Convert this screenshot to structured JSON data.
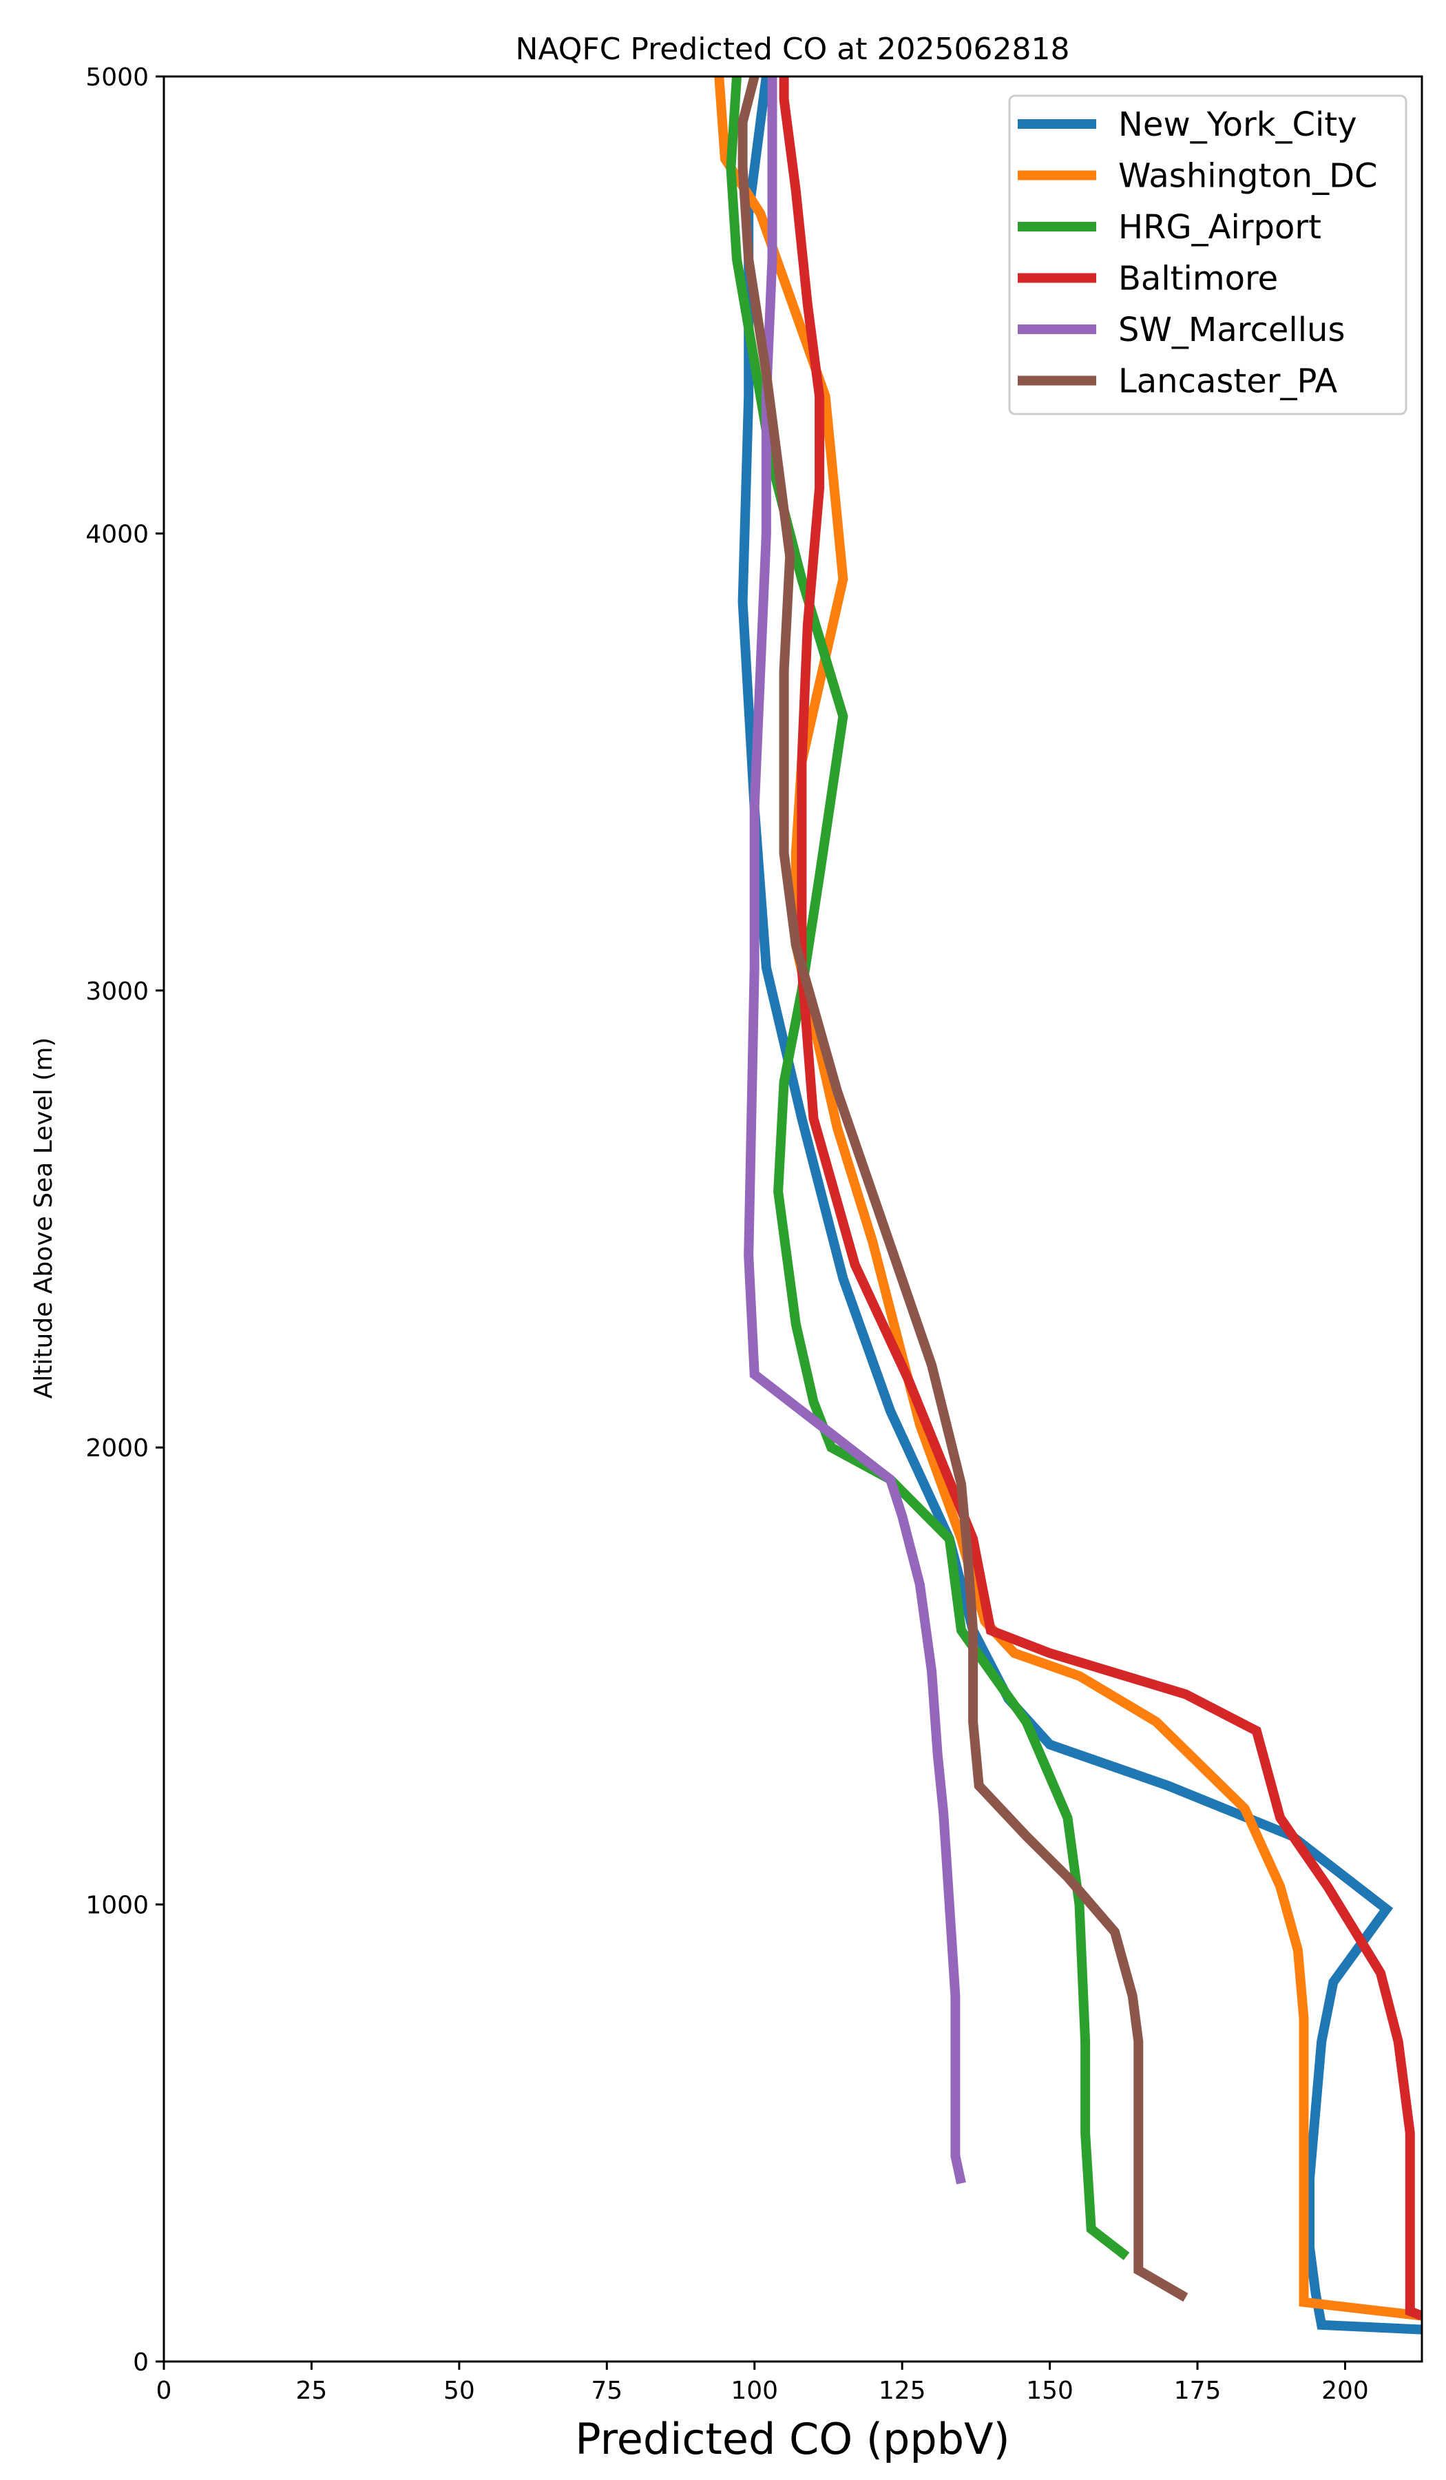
{
  "chart_data": {
    "type": "line",
    "title": "NAQFC Predicted CO at 2025062818",
    "xlabel": "Predicted CO (ppbV)",
    "ylabel": "Altitude Above Sea Level (m)",
    "xlim": [
      0,
      213
    ],
    "ylim": [
      0,
      5000
    ],
    "xticks": [
      0,
      25,
      50,
      75,
      100,
      125,
      150,
      175,
      200
    ],
    "yticks": [
      0,
      1000,
      2000,
      3000,
      4000,
      5000
    ],
    "grid": false,
    "legend_position": "top-right",
    "series": [
      {
        "name": "New_York_City",
        "color": "#1f77b4",
        "points": [
          [
            213,
            70
          ],
          [
            196,
            80
          ],
          [
            195,
            150
          ],
          [
            194,
            250
          ],
          [
            194,
            400
          ],
          [
            195,
            550
          ],
          [
            196,
            700
          ],
          [
            198,
            830
          ],
          [
            207,
            990
          ],
          [
            191,
            1150
          ],
          [
            170,
            1260
          ],
          [
            150,
            1350
          ],
          [
            143,
            1450
          ],
          [
            137,
            1600
          ],
          [
            133,
            1800
          ],
          [
            123,
            2080
          ],
          [
            115,
            2370
          ],
          [
            108,
            2720
          ],
          [
            102,
            3050
          ],
          [
            100,
            3400
          ],
          [
            98,
            3850
          ],
          [
            99,
            4300
          ],
          [
            99,
            4700
          ],
          [
            102,
            5000
          ]
        ]
      },
      {
        "name": "Washington_DC",
        "color": "#ff7f0e",
        "points": [
          [
            213,
            100
          ],
          [
            193,
            130
          ],
          [
            193,
            300
          ],
          [
            193,
            500
          ],
          [
            193,
            750
          ],
          [
            192,
            900
          ],
          [
            189,
            1040
          ],
          [
            183,
            1210
          ],
          [
            168,
            1400
          ],
          [
            155,
            1500
          ],
          [
            144,
            1550
          ],
          [
            139,
            1620
          ],
          [
            135,
            1800
          ],
          [
            128,
            2050
          ],
          [
            120,
            2450
          ],
          [
            114,
            2700
          ],
          [
            107,
            3100
          ],
          [
            107,
            3300
          ],
          [
            108,
            3500
          ],
          [
            115,
            3900
          ],
          [
            112,
            4300
          ],
          [
            101,
            4700
          ],
          [
            95,
            4820
          ],
          [
            94,
            5000
          ]
        ]
      },
      {
        "name": "HRG_Airport",
        "color": "#2ca02c",
        "points": [
          [
            163,
            230
          ],
          [
            157,
            290
          ],
          [
            156,
            500
          ],
          [
            156,
            700
          ],
          [
            155,
            1000
          ],
          [
            153,
            1190
          ],
          [
            146,
            1400
          ],
          [
            135,
            1600
          ],
          [
            133,
            1800
          ],
          [
            123,
            1930
          ],
          [
            113,
            2000
          ],
          [
            110,
            2100
          ],
          [
            107,
            2270
          ],
          [
            104,
            2560
          ],
          [
            105,
            2800
          ],
          [
            108,
            3000
          ],
          [
            111,
            3250
          ],
          [
            115,
            3600
          ],
          [
            108,
            3900
          ],
          [
            103,
            4150
          ],
          [
            97,
            4600
          ],
          [
            96,
            4800
          ],
          [
            97,
            5000
          ]
        ]
      },
      {
        "name": "Baltimore",
        "color": "#d62728",
        "points": [
          [
            213,
            100
          ],
          [
            211,
            110
          ],
          [
            211,
            200
          ],
          [
            211,
            300
          ],
          [
            211,
            500
          ],
          [
            209,
            700
          ],
          [
            206,
            850
          ],
          [
            197,
            1040
          ],
          [
            189,
            1190
          ],
          [
            185,
            1380
          ],
          [
            173,
            1460
          ],
          [
            150,
            1550
          ],
          [
            140,
            1600
          ],
          [
            137,
            1800
          ],
          [
            126,
            2150
          ],
          [
            117,
            2400
          ],
          [
            110,
            2720
          ],
          [
            108,
            3050
          ],
          [
            108,
            3300
          ],
          [
            108,
            3500
          ],
          [
            109,
            3800
          ],
          [
            111,
            4100
          ],
          [
            111,
            4300
          ],
          [
            109,
            4500
          ],
          [
            107,
            4750
          ],
          [
            105,
            4950
          ],
          [
            105,
            5000
          ]
        ]
      },
      {
        "name": "SW_Marcellus",
        "color": "#9467bd",
        "points": [
          [
            135,
            390
          ],
          [
            134,
            450
          ],
          [
            134,
            600
          ],
          [
            134,
            800
          ],
          [
            133,
            1000
          ],
          [
            132,
            1200
          ],
          [
            131,
            1330
          ],
          [
            130,
            1510
          ],
          [
            128,
            1700
          ],
          [
            125,
            1850
          ],
          [
            123,
            1930
          ],
          [
            113,
            2030
          ],
          [
            100,
            2160
          ],
          [
            99,
            2420
          ],
          [
            100,
            3050
          ],
          [
            100,
            3400
          ],
          [
            101,
            3700
          ],
          [
            102,
            4000
          ],
          [
            102,
            4300
          ],
          [
            103,
            4600
          ],
          [
            103,
            4900
          ],
          [
            103,
            5000
          ]
        ]
      },
      {
        "name": "Lancaster_PA",
        "color": "#8c564b",
        "points": [
          [
            173,
            140
          ],
          [
            165,
            200
          ],
          [
            165,
            400
          ],
          [
            165,
            700
          ],
          [
            164,
            800
          ],
          [
            161,
            940
          ],
          [
            153,
            1060
          ],
          [
            146,
            1150
          ],
          [
            138,
            1260
          ],
          [
            137,
            1400
          ],
          [
            137,
            1600
          ],
          [
            136,
            1780
          ],
          [
            135,
            1920
          ],
          [
            130,
            2180
          ],
          [
            122,
            2480
          ],
          [
            114,
            2780
          ],
          [
            107,
            3100
          ],
          [
            105,
            3300
          ],
          [
            105,
            3500
          ],
          [
            105,
            3700
          ],
          [
            106,
            3950
          ],
          [
            104,
            4150
          ],
          [
            102,
            4350
          ],
          [
            99,
            4600
          ],
          [
            98,
            4800
          ],
          [
            98,
            4900
          ],
          [
            100,
            5000
          ]
        ]
      }
    ]
  }
}
